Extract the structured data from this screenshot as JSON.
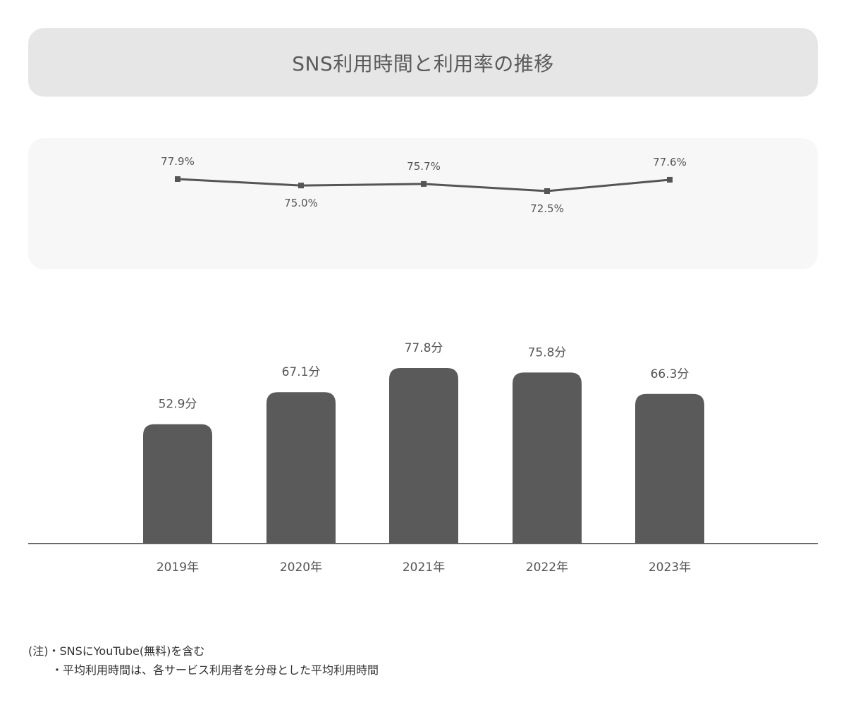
{
  "chart_data": {
    "title": "SNS利用時間と利用率の推移",
    "categories": [
      "2019年",
      "2020年",
      "2021年",
      "2022年",
      "2023年"
    ],
    "line": {
      "type": "line",
      "values": [
        77.9,
        75.0,
        75.7,
        72.5,
        77.6
      ],
      "labels": [
        "77.9%",
        "75.0%",
        "75.7%",
        "72.5%",
        "77.6%"
      ],
      "label_side": [
        "above",
        "below",
        "above",
        "below",
        "above"
      ],
      "color": "#555555"
    },
    "bars": {
      "type": "bar",
      "values": [
        52.9,
        67.1,
        77.8,
        75.8,
        66.3
      ],
      "labels": [
        "52.9分",
        "67.1分",
        "77.8分",
        "75.8分",
        "66.3分"
      ],
      "color": "#5b5a5a",
      "ylim": [
        0,
        80
      ]
    }
  },
  "notes": {
    "line1": "(注)・SNSにYouTube(無料)を含む",
    "line2": "・平均利用時間は、各サービス利用者を分母とした平均利用時間"
  }
}
